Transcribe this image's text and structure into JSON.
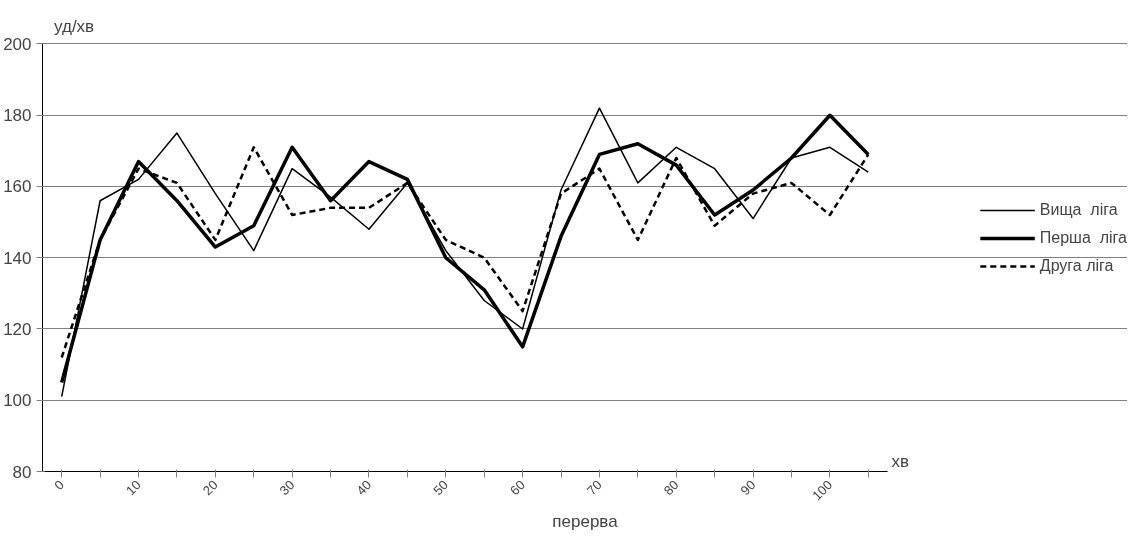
{
  "chart_data": {
    "type": "line",
    "ylabel": "уд/хв",
    "xlabel": "хв",
    "annotations": [
      "перерва"
    ],
    "categories": [
      "0",
      null,
      "10",
      null,
      "20",
      null,
      "30",
      null,
      "40",
      null,
      "50",
      null,
      "60",
      null,
      "70",
      null,
      "80",
      null,
      "90",
      null,
      "100",
      null
    ],
    "ylim": [
      80,
      200
    ],
    "yticks": [
      80,
      100,
      120,
      140,
      160,
      180,
      200
    ],
    "grid": "y",
    "legend": "right",
    "series": [
      {
        "name": "Вища  ліга",
        "color": "#000000",
        "line_style": "solid",
        "values": [
          101,
          156,
          162,
          175,
          158,
          142,
          165,
          157,
          148,
          161,
          142,
          128,
          120,
          159,
          182,
          161,
          171,
          165,
          151,
          168,
          171,
          164
        ]
      },
      {
        "name": "Перша  ліга",
        "color": "#000000",
        "line_style": "solid",
        "values": [
          105,
          145,
          167,
          156,
          143,
          149,
          171,
          156,
          167,
          162,
          140,
          131,
          115,
          146,
          169,
          172,
          166,
          152,
          159,
          168,
          180,
          169
        ]
      },
      {
        "name": "Друга ліга",
        "color": "#000000",
        "line_style": "dashed",
        "values": [
          112,
          145,
          165,
          161,
          145,
          171,
          152,
          154,
          154,
          161,
          145,
          140,
          125,
          158,
          165,
          145,
          168,
          149,
          158,
          161,
          152,
          169
        ]
      }
    ]
  }
}
